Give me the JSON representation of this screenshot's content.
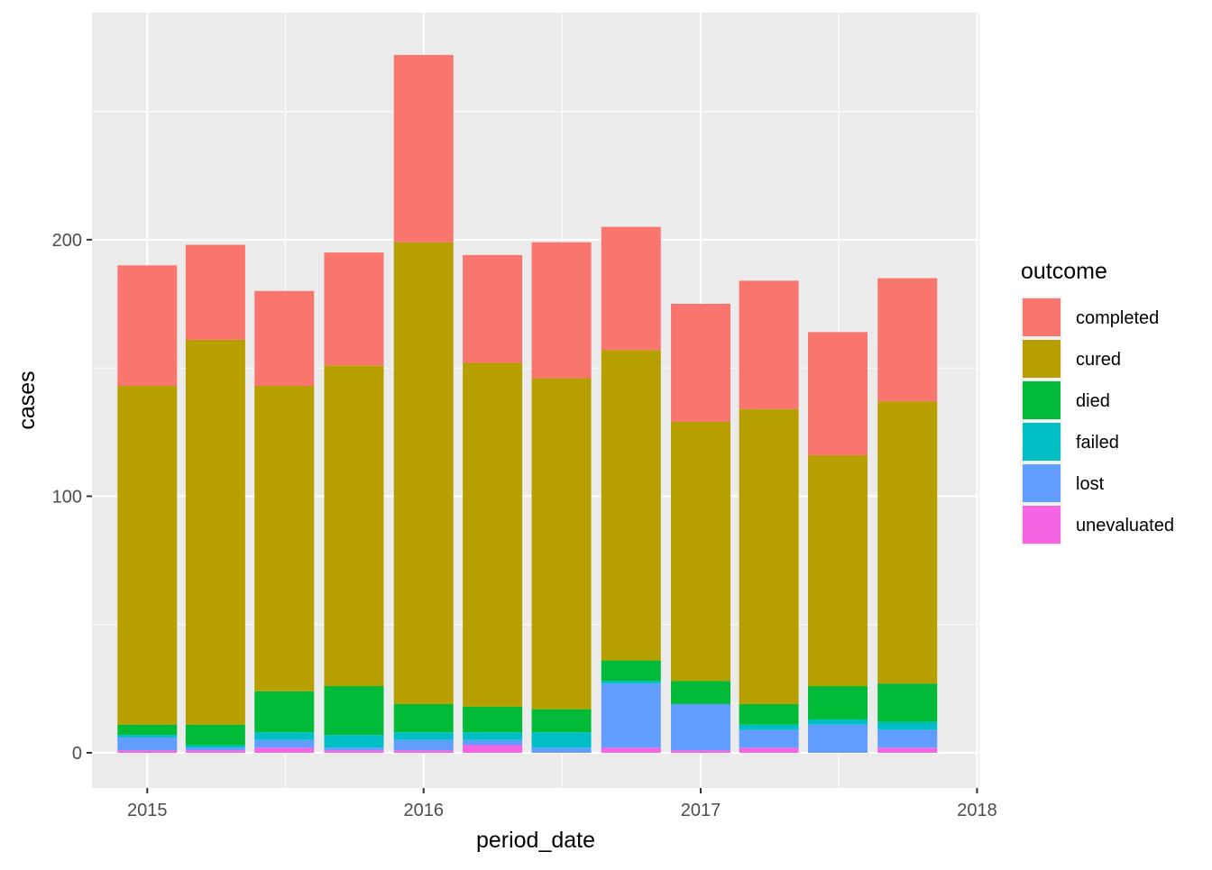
{
  "chart_data": {
    "type": "bar",
    "stacked": true,
    "xlabel": "period_date",
    "ylabel": "cases",
    "x_tick_labels": [
      "2015",
      "2016",
      "2017",
      "2018"
    ],
    "x_ticks": [
      "2015-01-01",
      "2016-01-01",
      "2017-01-01",
      "2018-01-01"
    ],
    "y_ticks": [
      0,
      100,
      200
    ],
    "y_tick_labels": [
      "0",
      "100",
      "200"
    ],
    "xlim": [
      "2014-10-20",
      "2018-01-04"
    ],
    "ylim": [
      -13.7,
      288.5
    ],
    "grid": true,
    "legend": {
      "title": "outcome",
      "position": "right",
      "entries": [
        "completed",
        "cured",
        "died",
        "failed",
        "lost",
        "unevaluated"
      ]
    },
    "colors": {
      "completed": "#F8766D",
      "cured": "#B79F00",
      "died": "#00BA38",
      "failed": "#00BFC4",
      "lost": "#619CFF",
      "unevaluated": "#F564E3"
    },
    "categories": [
      "2015-01-01",
      "2015-04-01",
      "2015-07-01",
      "2015-10-01",
      "2016-01-01",
      "2016-04-01",
      "2016-07-01",
      "2016-10-01",
      "2017-01-01",
      "2017-04-01",
      "2017-07-01",
      "2017-10-01"
    ],
    "series": [
      {
        "name": "unevaluated",
        "values": [
          1,
          1,
          2,
          1,
          1,
          3,
          0,
          2,
          1,
          2,
          0,
          2
        ]
      },
      {
        "name": "lost",
        "values": [
          5,
          1,
          3,
          1,
          4,
          2,
          2,
          25,
          18,
          7,
          11,
          7
        ]
      },
      {
        "name": "failed",
        "values": [
          1,
          1,
          3,
          5,
          3,
          3,
          6,
          1,
          0,
          2,
          2,
          3
        ]
      },
      {
        "name": "died",
        "values": [
          4,
          8,
          16,
          19,
          11,
          10,
          9,
          8,
          9,
          8,
          13,
          15
        ]
      },
      {
        "name": "cured",
        "values": [
          132,
          150,
          119,
          125,
          180,
          134,
          129,
          121,
          101,
          115,
          90,
          110
        ]
      },
      {
        "name": "completed",
        "values": [
          47,
          37,
          37,
          44,
          73,
          42,
          53,
          48,
          46,
          50,
          48,
          48
        ]
      }
    ]
  }
}
